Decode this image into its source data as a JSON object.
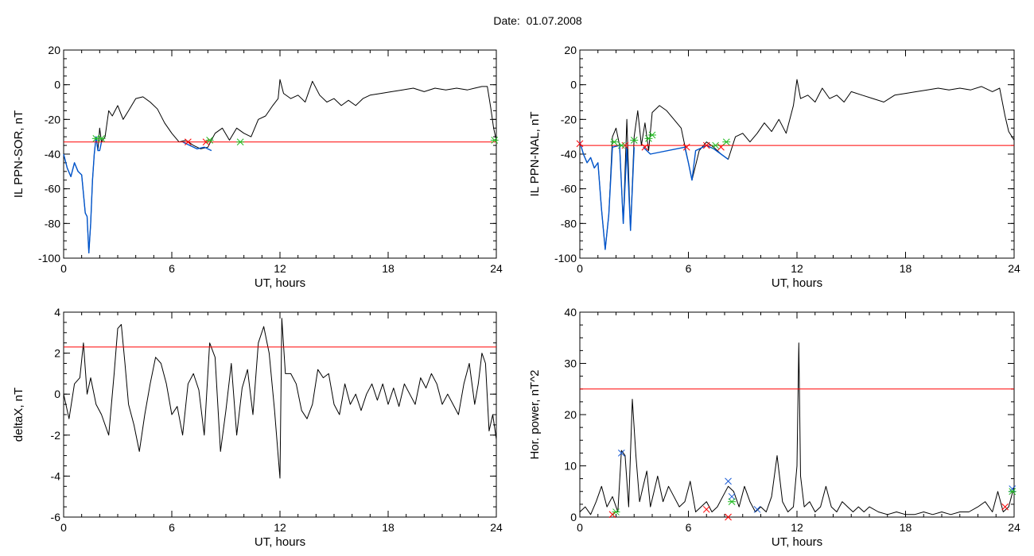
{
  "figure_title": "Date:  01.07.2008",
  "chart_data": [
    {
      "type": "line",
      "ylabel": "IL PPN-SOR, nT",
      "xlabel": "UT, hours",
      "xlim": [
        0,
        24
      ],
      "ylim": [
        -100,
        20
      ],
      "xticks": [
        0,
        6,
        12,
        18,
        24
      ],
      "yticks": [
        -100,
        -80,
        -60,
        -40,
        -20,
        0,
        20
      ],
      "threshold": -33,
      "threshold_color": "#ff0000",
      "series": [
        {
          "color": "#000000",
          "x": [
            0,
            0.2,
            0.4,
            0.6,
            0.8,
            1.0,
            1.2,
            1.3,
            1.4,
            1.5,
            1.6,
            1.7,
            1.8,
            1.9,
            2.0,
            2.1,
            2.3,
            2.5,
            2.7,
            3.0,
            3.3,
            3.6,
            4.0,
            4.4,
            4.8,
            5.2,
            5.6,
            6.0,
            6.4,
            6.8,
            7.2,
            7.6,
            8.0,
            8.4,
            8.8,
            9.2,
            9.6,
            10.0,
            10.4,
            10.8,
            11.2,
            11.6,
            11.9,
            12.0,
            12.2,
            12.6,
            13.0,
            13.4,
            13.8,
            14.2,
            14.6,
            15.0,
            15.4,
            15.8,
            16.2,
            16.6,
            17.0,
            17.6,
            18.2,
            18.8,
            19.4,
            20.0,
            20.6,
            21.2,
            21.8,
            22.4,
            22.8,
            23.2,
            23.5,
            23.7,
            23.85,
            24.0
          ],
          "y": [
            -40,
            -48,
            -53,
            -45,
            -50,
            -52,
            -74,
            -76,
            -97,
            -80,
            -55,
            -40,
            -30,
            -38,
            -25,
            -33,
            -30,
            -15,
            -18,
            -12,
            -20,
            -15,
            -8,
            -7,
            -10,
            -14,
            -22,
            -28,
            -33,
            -32,
            -35,
            -37,
            -36,
            -28,
            -25,
            -32,
            -25,
            -28,
            -30,
            -20,
            -18,
            -12,
            -8,
            3,
            -5,
            -8,
            -6,
            -10,
            2,
            -6,
            -10,
            -8,
            -12,
            -9,
            -12,
            -8,
            -6,
            -5,
            -4,
            -3,
            -2,
            -4,
            -2,
            -3,
            -2,
            -3,
            -2,
            -1,
            -1,
            -14,
            -25,
            -32
          ]
        },
        {
          "color": "#0055cc",
          "x": [
            0,
            0.2,
            0.4,
            0.6,
            0.8,
            1.0,
            1.2,
            1.3,
            1.4,
            1.5,
            1.6,
            1.7,
            1.8,
            1.9,
            2.0,
            2.1
          ],
          "y": [
            -40,
            -48,
            -53,
            -45,
            -50,
            -52,
            -74,
            -76,
            -97,
            -80,
            -55,
            -40,
            -30,
            -38,
            -38,
            -33
          ]
        },
        {
          "color": "#0055cc",
          "x": [
            6.6,
            7.0,
            7.4,
            7.8,
            8.2
          ],
          "y": [
            -33,
            -35,
            -37,
            -36,
            -38
          ]
        }
      ],
      "markers_red": [
        [
          6.9,
          -33
        ],
        [
          7.9,
          -33
        ]
      ],
      "markers_green": [
        [
          1.8,
          -31
        ],
        [
          2.1,
          -31
        ],
        [
          8.1,
          -32
        ],
        [
          9.8,
          -33
        ],
        [
          23.9,
          -32
        ]
      ],
      "markers_blue": []
    },
    {
      "type": "line",
      "ylabel": "IL PPN-NAL, nT",
      "xlabel": "UT, hours",
      "xlim": [
        0,
        24
      ],
      "ylim": [
        -100,
        20
      ],
      "xticks": [
        0,
        6,
        12,
        18,
        24
      ],
      "yticks": [
        -100,
        -80,
        -60,
        -40,
        -20,
        0,
        20
      ],
      "threshold": -35,
      "threshold_color": "#ff0000",
      "series": [
        {
          "color": "#000000",
          "x": [
            0,
            0.2,
            0.4,
            0.6,
            0.8,
            1.0,
            1.2,
            1.4,
            1.6,
            1.8,
            2.0,
            2.2,
            2.4,
            2.6,
            2.8,
            3.0,
            3.2,
            3.4,
            3.6,
            3.8,
            4.0,
            4.4,
            4.8,
            5.2,
            5.6,
            6.0,
            6.2,
            6.6,
            7.0,
            7.4,
            7.8,
            8.2,
            8.6,
            9.0,
            9.4,
            9.8,
            10.2,
            10.6,
            11.0,
            11.4,
            11.8,
            12.0,
            12.2,
            12.6,
            13.0,
            13.4,
            13.8,
            14.2,
            14.6,
            15.0,
            15.6,
            16.2,
            16.8,
            17.4,
            18.0,
            18.6,
            19.2,
            19.8,
            20.4,
            21.0,
            21.6,
            22.2,
            22.8,
            23.2,
            23.5,
            23.7,
            24.0
          ],
          "y": [
            -33,
            -40,
            -45,
            -42,
            -48,
            -45,
            -72,
            -95,
            -75,
            -30,
            -25,
            -35,
            -80,
            -20,
            -84,
            -30,
            -15,
            -35,
            -22,
            -38,
            -16,
            -12,
            -15,
            -20,
            -25,
            -45,
            -55,
            -38,
            -33,
            -36,
            -40,
            -43,
            -30,
            -28,
            -33,
            -28,
            -22,
            -27,
            -20,
            -28,
            -12,
            3,
            -8,
            -6,
            -10,
            -2,
            -8,
            -6,
            -10,
            -4,
            -6,
            -8,
            -10,
            -6,
            -5,
            -4,
            -3,
            -2,
            -3,
            -2,
            -3,
            -1,
            -4,
            -2,
            -18,
            -27,
            -32
          ]
        },
        {
          "color": "#0055cc",
          "x": [
            0,
            0.2,
            0.4,
            0.6,
            0.8,
            1.0,
            1.2,
            1.4,
            1.6,
            1.8,
            2.2,
            2.4,
            2.6,
            2.8,
            3.0
          ],
          "y": [
            -33,
            -40,
            -45,
            -42,
            -48,
            -45,
            -72,
            -95,
            -75,
            -36,
            -35,
            -80,
            -36,
            -84,
            -36
          ]
        },
        {
          "color": "#0055cc",
          "x": [
            3.5,
            3.7,
            3.9,
            5.8,
            6.0,
            6.2,
            6.4,
            7.0,
            7.4,
            7.8,
            8.2
          ],
          "y": [
            -36,
            -38,
            -40,
            -36,
            -45,
            -55,
            -38,
            -35,
            -37,
            -40,
            -43
          ]
        }
      ],
      "markers_red": [
        [
          0,
          -34
        ],
        [
          2.5,
          -35
        ],
        [
          3.6,
          -36
        ],
        [
          5.9,
          -36
        ],
        [
          7.0,
          -35
        ],
        [
          7.8,
          -36
        ]
      ],
      "markers_green": [
        [
          1.9,
          -33
        ],
        [
          2.3,
          -35
        ],
        [
          3.0,
          -32
        ],
        [
          3.8,
          -31
        ],
        [
          4.0,
          -29
        ],
        [
          7.5,
          -35
        ],
        [
          8.1,
          -33
        ]
      ],
      "markers_blue": []
    },
    {
      "type": "line",
      "ylabel": "deltaX, nT",
      "xlabel": "UT, hours",
      "xlim": [
        0,
        24
      ],
      "ylim": [
        -6,
        4
      ],
      "xticks": [
        0,
        6,
        12,
        18,
        24
      ],
      "yticks": [
        -6,
        -4,
        -2,
        0,
        2,
        4
      ],
      "threshold": 2.3,
      "threshold_color": "#ff0000",
      "series": [
        {
          "color": "#000000",
          "x": [
            0,
            0.3,
            0.6,
            0.9,
            1.1,
            1.3,
            1.5,
            1.8,
            2.1,
            2.5,
            2.8,
            3.0,
            3.2,
            3.4,
            3.6,
            3.9,
            4.2,
            4.5,
            4.8,
            5.1,
            5.4,
            5.7,
            6.0,
            6.3,
            6.6,
            6.9,
            7.2,
            7.5,
            7.8,
            8.1,
            8.4,
            8.7,
            9.0,
            9.3,
            9.6,
            9.9,
            10.2,
            10.5,
            10.8,
            11.1,
            11.4,
            11.7,
            11.9,
            12.0,
            12.1,
            12.3,
            12.6,
            12.9,
            13.2,
            13.5,
            13.8,
            14.1,
            14.4,
            14.7,
            15.0,
            15.3,
            15.6,
            15.9,
            16.2,
            16.5,
            16.8,
            17.1,
            17.4,
            17.7,
            18.0,
            18.3,
            18.6,
            18.9,
            19.2,
            19.5,
            19.8,
            20.1,
            20.4,
            20.7,
            21.0,
            21.3,
            21.6,
            21.9,
            22.2,
            22.5,
            22.8,
            23.0,
            23.2,
            23.4,
            23.6,
            23.8,
            24.0
          ],
          "y": [
            0,
            -1.2,
            0.5,
            0.8,
            2.5,
            0,
            0.8,
            -0.5,
            -1.0,
            -2.0,
            1.0,
            3.2,
            3.4,
            1.5,
            -0.5,
            -1.5,
            -2.8,
            -1.0,
            0.5,
            1.8,
            1.5,
            0.5,
            -1.0,
            -0.6,
            -2.0,
            0.5,
            1.0,
            0.2,
            -2.0,
            2.5,
            1.8,
            -2.8,
            -0.8,
            1.5,
            -2.0,
            0.3,
            1.2,
            -1.0,
            2.5,
            3.3,
            2.0,
            -0.8,
            -3.0,
            -4.1,
            3.7,
            1.0,
            1.0,
            0.5,
            -0.8,
            -1.2,
            -0.5,
            1.2,
            0.8,
            1.0,
            -0.5,
            -1.0,
            0.5,
            -0.5,
            0.0,
            -0.8,
            0.0,
            0.5,
            -0.3,
            0.5,
            -0.5,
            0.3,
            -0.6,
            0.5,
            0.0,
            -0.5,
            0.8,
            0.3,
            1.0,
            0.5,
            -0.5,
            0.0,
            -0.5,
            -1.0,
            0.5,
            1.5,
            -0.5,
            0.5,
            2.0,
            1.5,
            -1.8,
            -1.0,
            -2.2
          ]
        }
      ],
      "markers_red": [],
      "markers_green": [],
      "markers_blue": []
    },
    {
      "type": "line",
      "ylabel": "Hor. power, nT^2",
      "xlabel": "UT, hours",
      "xlim": [
        0,
        24
      ],
      "ylim": [
        0,
        40
      ],
      "xticks": [
        0,
        6,
        12,
        18,
        24
      ],
      "yticks": [
        0,
        10,
        20,
        30,
        40
      ],
      "threshold": 25,
      "threshold_color": "#ff0000",
      "series": [
        {
          "color": "#000000",
          "x": [
            0,
            0.3,
            0.6,
            0.9,
            1.2,
            1.5,
            1.8,
            2.1,
            2.3,
            2.5,
            2.7,
            2.9,
            3.1,
            3.3,
            3.5,
            3.7,
            3.9,
            4.1,
            4.3,
            4.6,
            4.9,
            5.2,
            5.5,
            5.8,
            6.1,
            6.4,
            6.7,
            7.0,
            7.3,
            7.6,
            7.9,
            8.2,
            8.5,
            8.8,
            9.1,
            9.4,
            9.7,
            10.0,
            10.3,
            10.6,
            10.9,
            11.2,
            11.5,
            11.8,
            12.0,
            12.1,
            12.2,
            12.4,
            12.7,
            13.0,
            13.3,
            13.6,
            13.9,
            14.2,
            14.5,
            14.8,
            15.1,
            15.4,
            15.7,
            16.0,
            16.5,
            17.0,
            17.5,
            18.0,
            18.5,
            19.0,
            19.5,
            20.0,
            20.5,
            21.0,
            21.5,
            22.0,
            22.4,
            22.8,
            23.1,
            23.4,
            23.7,
            24.0
          ],
          "y": [
            1,
            2,
            0.5,
            3,
            6,
            2,
            4,
            1,
            13,
            12,
            2,
            23,
            12,
            3,
            6,
            9,
            2,
            5,
            8,
            3,
            6,
            4,
            2,
            3,
            7,
            1,
            2,
            3,
            1,
            2,
            4,
            6,
            5,
            2,
            6,
            3,
            1,
            2,
            1,
            4,
            12,
            3,
            1,
            2,
            10,
            34,
            8,
            2,
            3,
            1,
            2,
            6,
            2,
            1,
            3,
            2,
            1,
            2,
            1,
            2,
            1,
            0.5,
            1,
            0.5,
            0.5,
            1,
            0.5,
            1,
            0.5,
            1,
            1,
            2,
            3,
            1,
            5,
            1,
            2,
            6
          ]
        }
      ],
      "markers_red": [
        [
          1.8,
          0.5
        ],
        [
          7.0,
          1.5
        ],
        [
          8.2,
          0
        ],
        [
          23.5,
          2
        ]
      ],
      "markers_green": [
        [
          2.0,
          1
        ],
        [
          8.4,
          3
        ],
        [
          23.9,
          5
        ]
      ],
      "markers_blue": [
        [
          2.3,
          12.5
        ],
        [
          8.2,
          7
        ],
        [
          8.4,
          4
        ],
        [
          9.8,
          1.5
        ],
        [
          23.9,
          5.5
        ]
      ]
    }
  ]
}
